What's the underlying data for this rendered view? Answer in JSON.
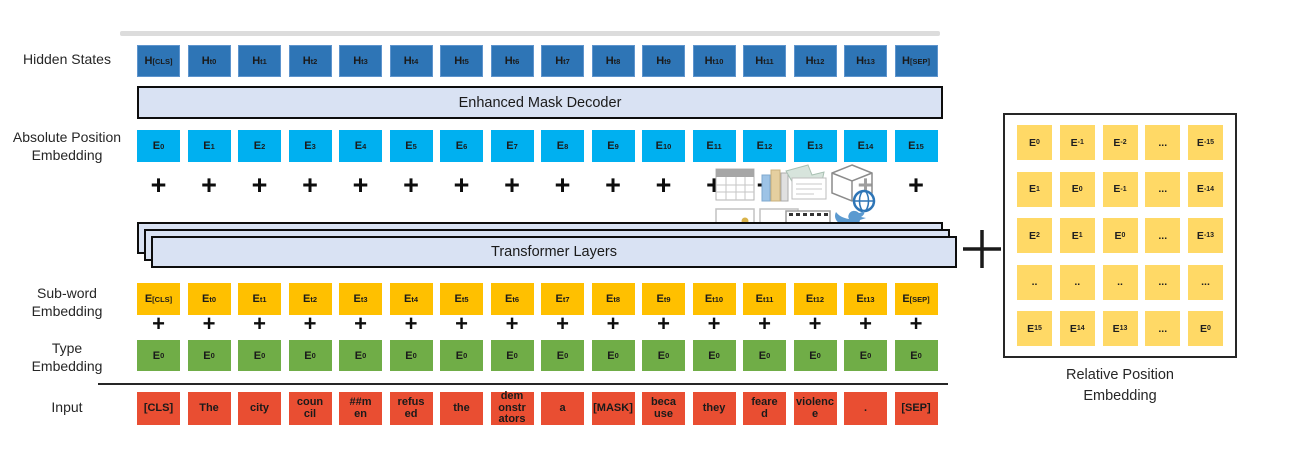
{
  "labels": {
    "hidden_states": "Hidden States",
    "absolute_position": "Absolute Position\nEmbedding",
    "sub_word": "Sub-word\nEmbedding",
    "type": "Type\nEmbedding",
    "input": "Input",
    "relative_position_caption": "Relative Position\nEmbedding"
  },
  "banners": {
    "enhanced_mask_decoder": "Enhanced Mask Decoder",
    "transformer_layers": "Transformer Layers"
  },
  "plus": "+",
  "rows": {
    "hidden_states": [
      {
        "b": "H",
        "s": "[CLS]"
      },
      {
        "b": "H",
        "s": "t0"
      },
      {
        "b": "H",
        "s": "t1"
      },
      {
        "b": "H",
        "s": "t2"
      },
      {
        "b": "H",
        "s": "t3"
      },
      {
        "b": "H",
        "s": "t4"
      },
      {
        "b": "H",
        "s": "t5"
      },
      {
        "b": "H",
        "s": "t6"
      },
      {
        "b": "H",
        "s": "t7"
      },
      {
        "b": "H",
        "s": "t8"
      },
      {
        "b": "H",
        "s": "t9"
      },
      {
        "b": "H",
        "s": "t10"
      },
      {
        "b": "H",
        "s": "t11"
      },
      {
        "b": "H",
        "s": "t12"
      },
      {
        "b": "H",
        "s": "t13"
      },
      {
        "b": "H",
        "s": "[SEP]"
      }
    ],
    "absolute_position": [
      {
        "b": "E",
        "s": "0"
      },
      {
        "b": "E",
        "s": "1"
      },
      {
        "b": "E",
        "s": "2"
      },
      {
        "b": "E",
        "s": "3"
      },
      {
        "b": "E",
        "s": "4"
      },
      {
        "b": "E",
        "s": "5"
      },
      {
        "b": "E",
        "s": "6"
      },
      {
        "b": "E",
        "s": "7"
      },
      {
        "b": "E",
        "s": "8"
      },
      {
        "b": "E",
        "s": "9"
      },
      {
        "b": "E",
        "s": "10"
      },
      {
        "b": "E",
        "s": "11"
      },
      {
        "b": "E",
        "s": "12"
      },
      {
        "b": "E",
        "s": "13"
      },
      {
        "b": "E",
        "s": "14"
      },
      {
        "b": "E",
        "s": "15"
      }
    ],
    "sub_word": [
      {
        "b": "E",
        "s": "[CLS]"
      },
      {
        "b": "E",
        "s": "t0"
      },
      {
        "b": "E",
        "s": "t1"
      },
      {
        "b": "E",
        "s": "t2"
      },
      {
        "b": "E",
        "s": "t3"
      },
      {
        "b": "E",
        "s": "t4"
      },
      {
        "b": "E",
        "s": "t5"
      },
      {
        "b": "E",
        "s": "t6"
      },
      {
        "b": "E",
        "s": "t7"
      },
      {
        "b": "E",
        "s": "t8"
      },
      {
        "b": "E",
        "s": "t9"
      },
      {
        "b": "E",
        "s": "t10"
      },
      {
        "b": "E",
        "s": "t11"
      },
      {
        "b": "E",
        "s": "t12"
      },
      {
        "b": "E",
        "s": "t13"
      },
      {
        "b": "E",
        "s": "[SEP]"
      }
    ],
    "type": [
      {
        "b": "E",
        "s": "0"
      },
      {
        "b": "E",
        "s": "0"
      },
      {
        "b": "E",
        "s": "0"
      },
      {
        "b": "E",
        "s": "0"
      },
      {
        "b": "E",
        "s": "0"
      },
      {
        "b": "E",
        "s": "0"
      },
      {
        "b": "E",
        "s": "0"
      },
      {
        "b": "E",
        "s": "0"
      },
      {
        "b": "E",
        "s": "0"
      },
      {
        "b": "E",
        "s": "0"
      },
      {
        "b": "E",
        "s": "0"
      },
      {
        "b": "E",
        "s": "0"
      },
      {
        "b": "E",
        "s": "0"
      },
      {
        "b": "E",
        "s": "0"
      },
      {
        "b": "E",
        "s": "0"
      },
      {
        "b": "E",
        "s": "0"
      }
    ],
    "input": [
      "[CLS]",
      "The",
      "city",
      "coun\ncil",
      "##m\nen",
      "refus\ned",
      "the",
      "dem\nonstr\nators",
      "a",
      "[MASK]",
      "beca\nuse",
      "they",
      "feare\nd",
      "violenc\ne",
      ".",
      "[SEP]"
    ],
    "plus_row1": [
      "+",
      "+",
      "+",
      "+",
      "+",
      "+",
      "+",
      "+",
      "+",
      "+",
      "+",
      "+",
      "+",
      "+",
      "+",
      "+"
    ],
    "plus_row2": [
      "+",
      "+",
      "+",
      "+",
      "+",
      "+",
      "+",
      "+",
      "+",
      "+",
      "+",
      "+",
      "+",
      "+",
      "+",
      "+"
    ]
  },
  "matrix": {
    "rows": [
      [
        {
          "b": "E",
          "s": "0"
        },
        {
          "b": "E",
          "s": "-1"
        },
        {
          "b": "E",
          "s": "-2"
        },
        {
          "b": "...",
          "s": ""
        },
        {
          "b": "E",
          "s": "-15"
        }
      ],
      [
        {
          "b": "E",
          "s": "1"
        },
        {
          "b": "E",
          "s": "0"
        },
        {
          "b": "E",
          "s": "-1"
        },
        {
          "b": "...",
          "s": ""
        },
        {
          "b": "E",
          "s": "-14"
        }
      ],
      [
        {
          "b": "E",
          "s": "2"
        },
        {
          "b": "E",
          "s": "1"
        },
        {
          "b": "E",
          "s": "0"
        },
        {
          "b": "...",
          "s": ""
        },
        {
          "b": "E",
          "s": "-13"
        }
      ],
      [
        {
          "b": "..",
          "s": ""
        },
        {
          "b": "..",
          "s": ""
        },
        {
          "b": "..",
          "s": ""
        },
        {
          "b": "...",
          "s": ""
        },
        {
          "b": "...",
          "s": ""
        }
      ],
      [
        {
          "b": "E",
          "s": "15"
        },
        {
          "b": "E",
          "s": "14"
        },
        {
          "b": "E",
          "s": "13"
        },
        {
          "b": "...",
          "s": ""
        },
        {
          "b": "E",
          "s": "0"
        }
      ]
    ]
  },
  "icons": [
    "table-icon",
    "books-icon",
    "note-icon",
    "cube-globe-icon",
    "photo-icon",
    "photo-icon",
    "film-strip-icon",
    "twitter-bird-icon"
  ],
  "colors": {
    "hidden_states": "#2e75b6",
    "absolute_position": "#00b0f0",
    "sub_word": "#ffc000",
    "type": "#70ad47",
    "input": "#e94e32",
    "matrix_cell": "#ffd966",
    "banner_fill": "#d9e2f3",
    "banner_border": "#0d0d0d"
  }
}
